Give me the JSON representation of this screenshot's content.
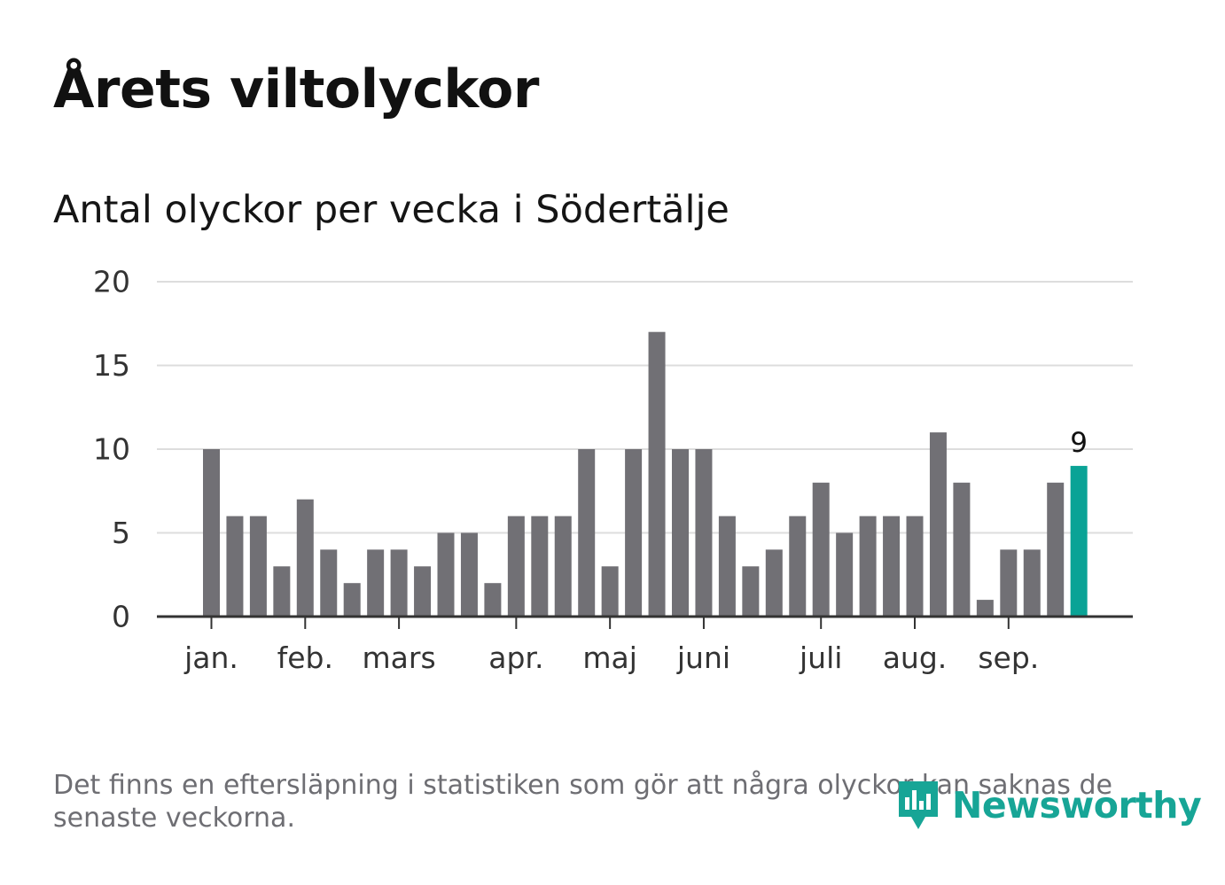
{
  "title": "Årets viltolyckor",
  "subtitle": "Antal olyckor per vecka i Södertälje",
  "footnote": "Det finns en eftersläpning i statistiken som gör att några olyckor kan saknas de senaste veckorna.",
  "logo": {
    "text": "Newsworthy",
    "icon": "newsworthy-logo-icon"
  },
  "colors": {
    "bar": "#717075",
    "highlight": "#0aa396",
    "grid": "#dddddd",
    "axis": "#333333",
    "text": "#333333"
  },
  "chart_data": {
    "type": "bar",
    "title": "Antal olyckor per vecka i Södertälje",
    "xlabel": "",
    "ylabel": "",
    "ylim": [
      0,
      20
    ],
    "yticks": [
      "0",
      "5",
      "10",
      "15",
      "20"
    ],
    "grid": true,
    "weeks": [
      1,
      2,
      3,
      4,
      5,
      6,
      7,
      8,
      9,
      10,
      11,
      12,
      13,
      14,
      15,
      16,
      17,
      18,
      19,
      20,
      21,
      22,
      23,
      24,
      25,
      26,
      27,
      28,
      29,
      30,
      31,
      32,
      33,
      34,
      35,
      36,
      37,
      38
    ],
    "values": [
      10,
      6,
      6,
      3,
      7,
      4,
      2,
      4,
      4,
      3,
      5,
      5,
      2,
      6,
      6,
      6,
      10,
      3,
      10,
      17,
      10,
      10,
      6,
      3,
      4,
      6,
      8,
      5,
      6,
      6,
      6,
      11,
      8,
      1,
      4,
      4,
      8,
      9
    ],
    "highlight_index": 37,
    "highlight_label": "9",
    "month_ticks": [
      {
        "label": "jan.",
        "week_index": 0
      },
      {
        "label": "feb.",
        "week_index": 4
      },
      {
        "label": "mars",
        "week_index": 8
      },
      {
        "label": "apr.",
        "week_index": 13
      },
      {
        "label": "maj",
        "week_index": 17
      },
      {
        "label": "juni",
        "week_index": 21
      },
      {
        "label": "juli",
        "week_index": 26
      },
      {
        "label": "aug.",
        "week_index": 30
      },
      {
        "label": "sep.",
        "week_index": 34
      }
    ]
  }
}
